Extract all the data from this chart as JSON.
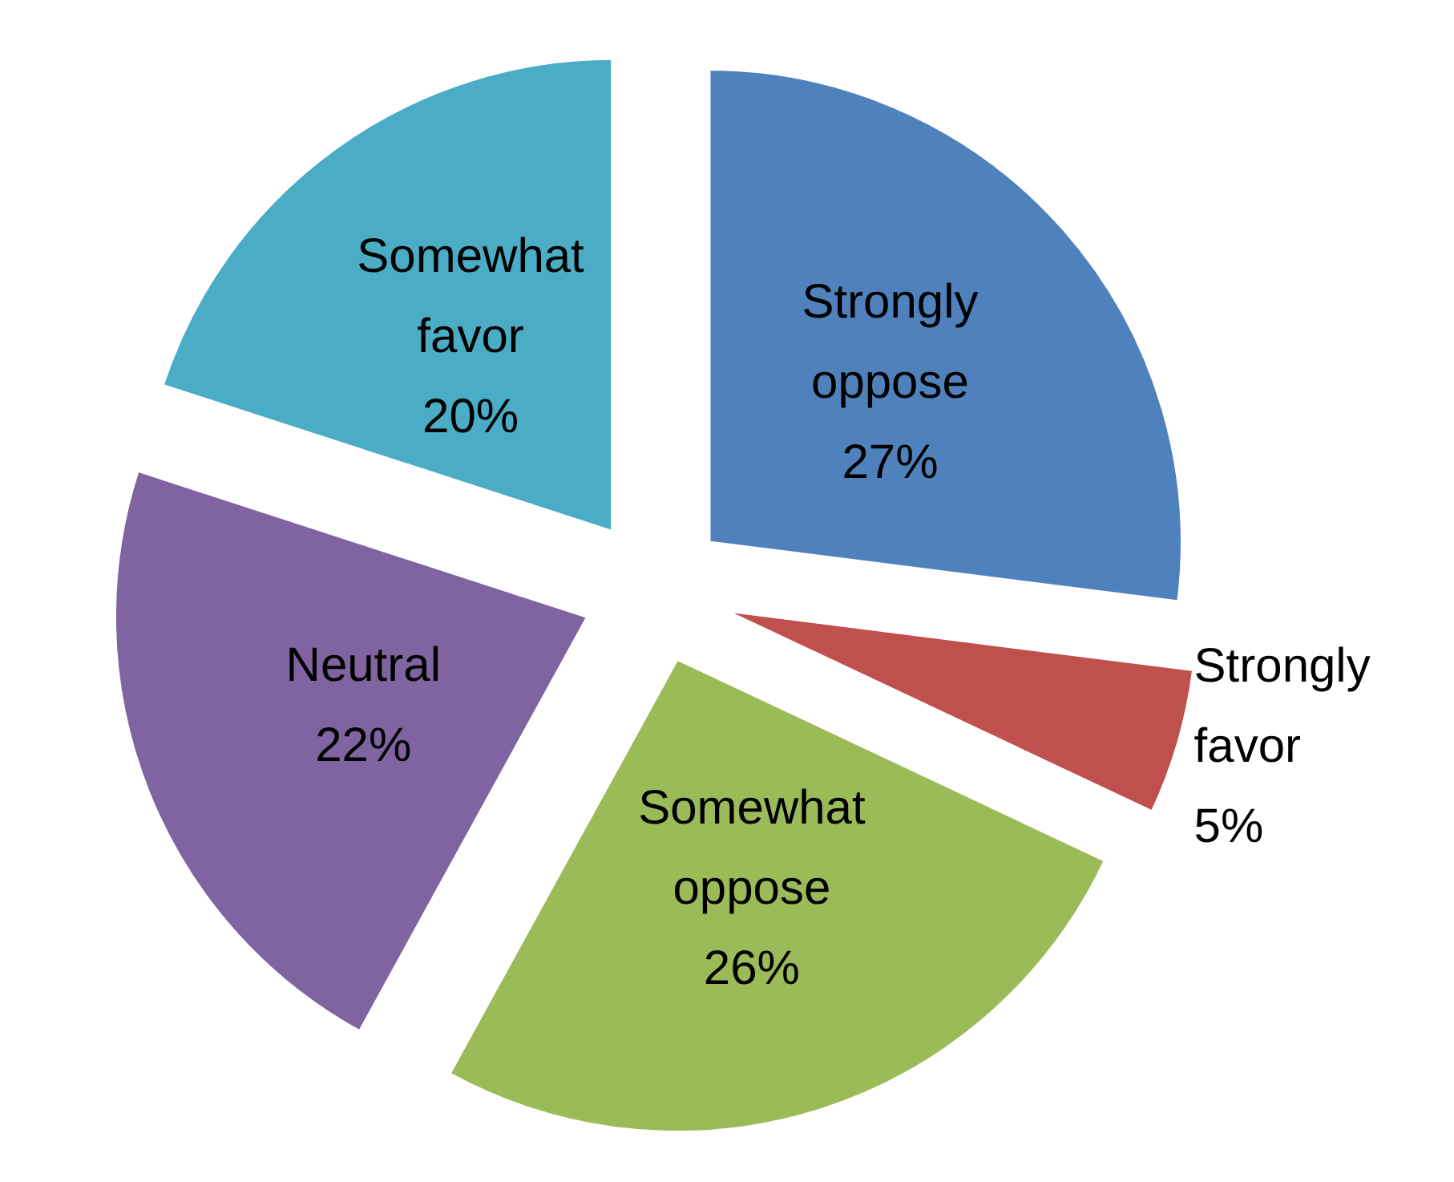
{
  "chart_data": {
    "type": "pie",
    "categories": [
      "Strongly oppose",
      "Strongly favor",
      "Somewhat oppose",
      "Neutral",
      "Somewhat favor"
    ],
    "values": [
      27,
      5,
      26,
      22,
      20
    ],
    "value_labels": [
      "27%",
      "5%",
      "26%",
      "22%",
      "20%"
    ],
    "colors": [
      "#4f81bd",
      "#c0504d",
      "#9bbb59",
      "#8064a2",
      "#4bacc6"
    ],
    "legend": false
  }
}
